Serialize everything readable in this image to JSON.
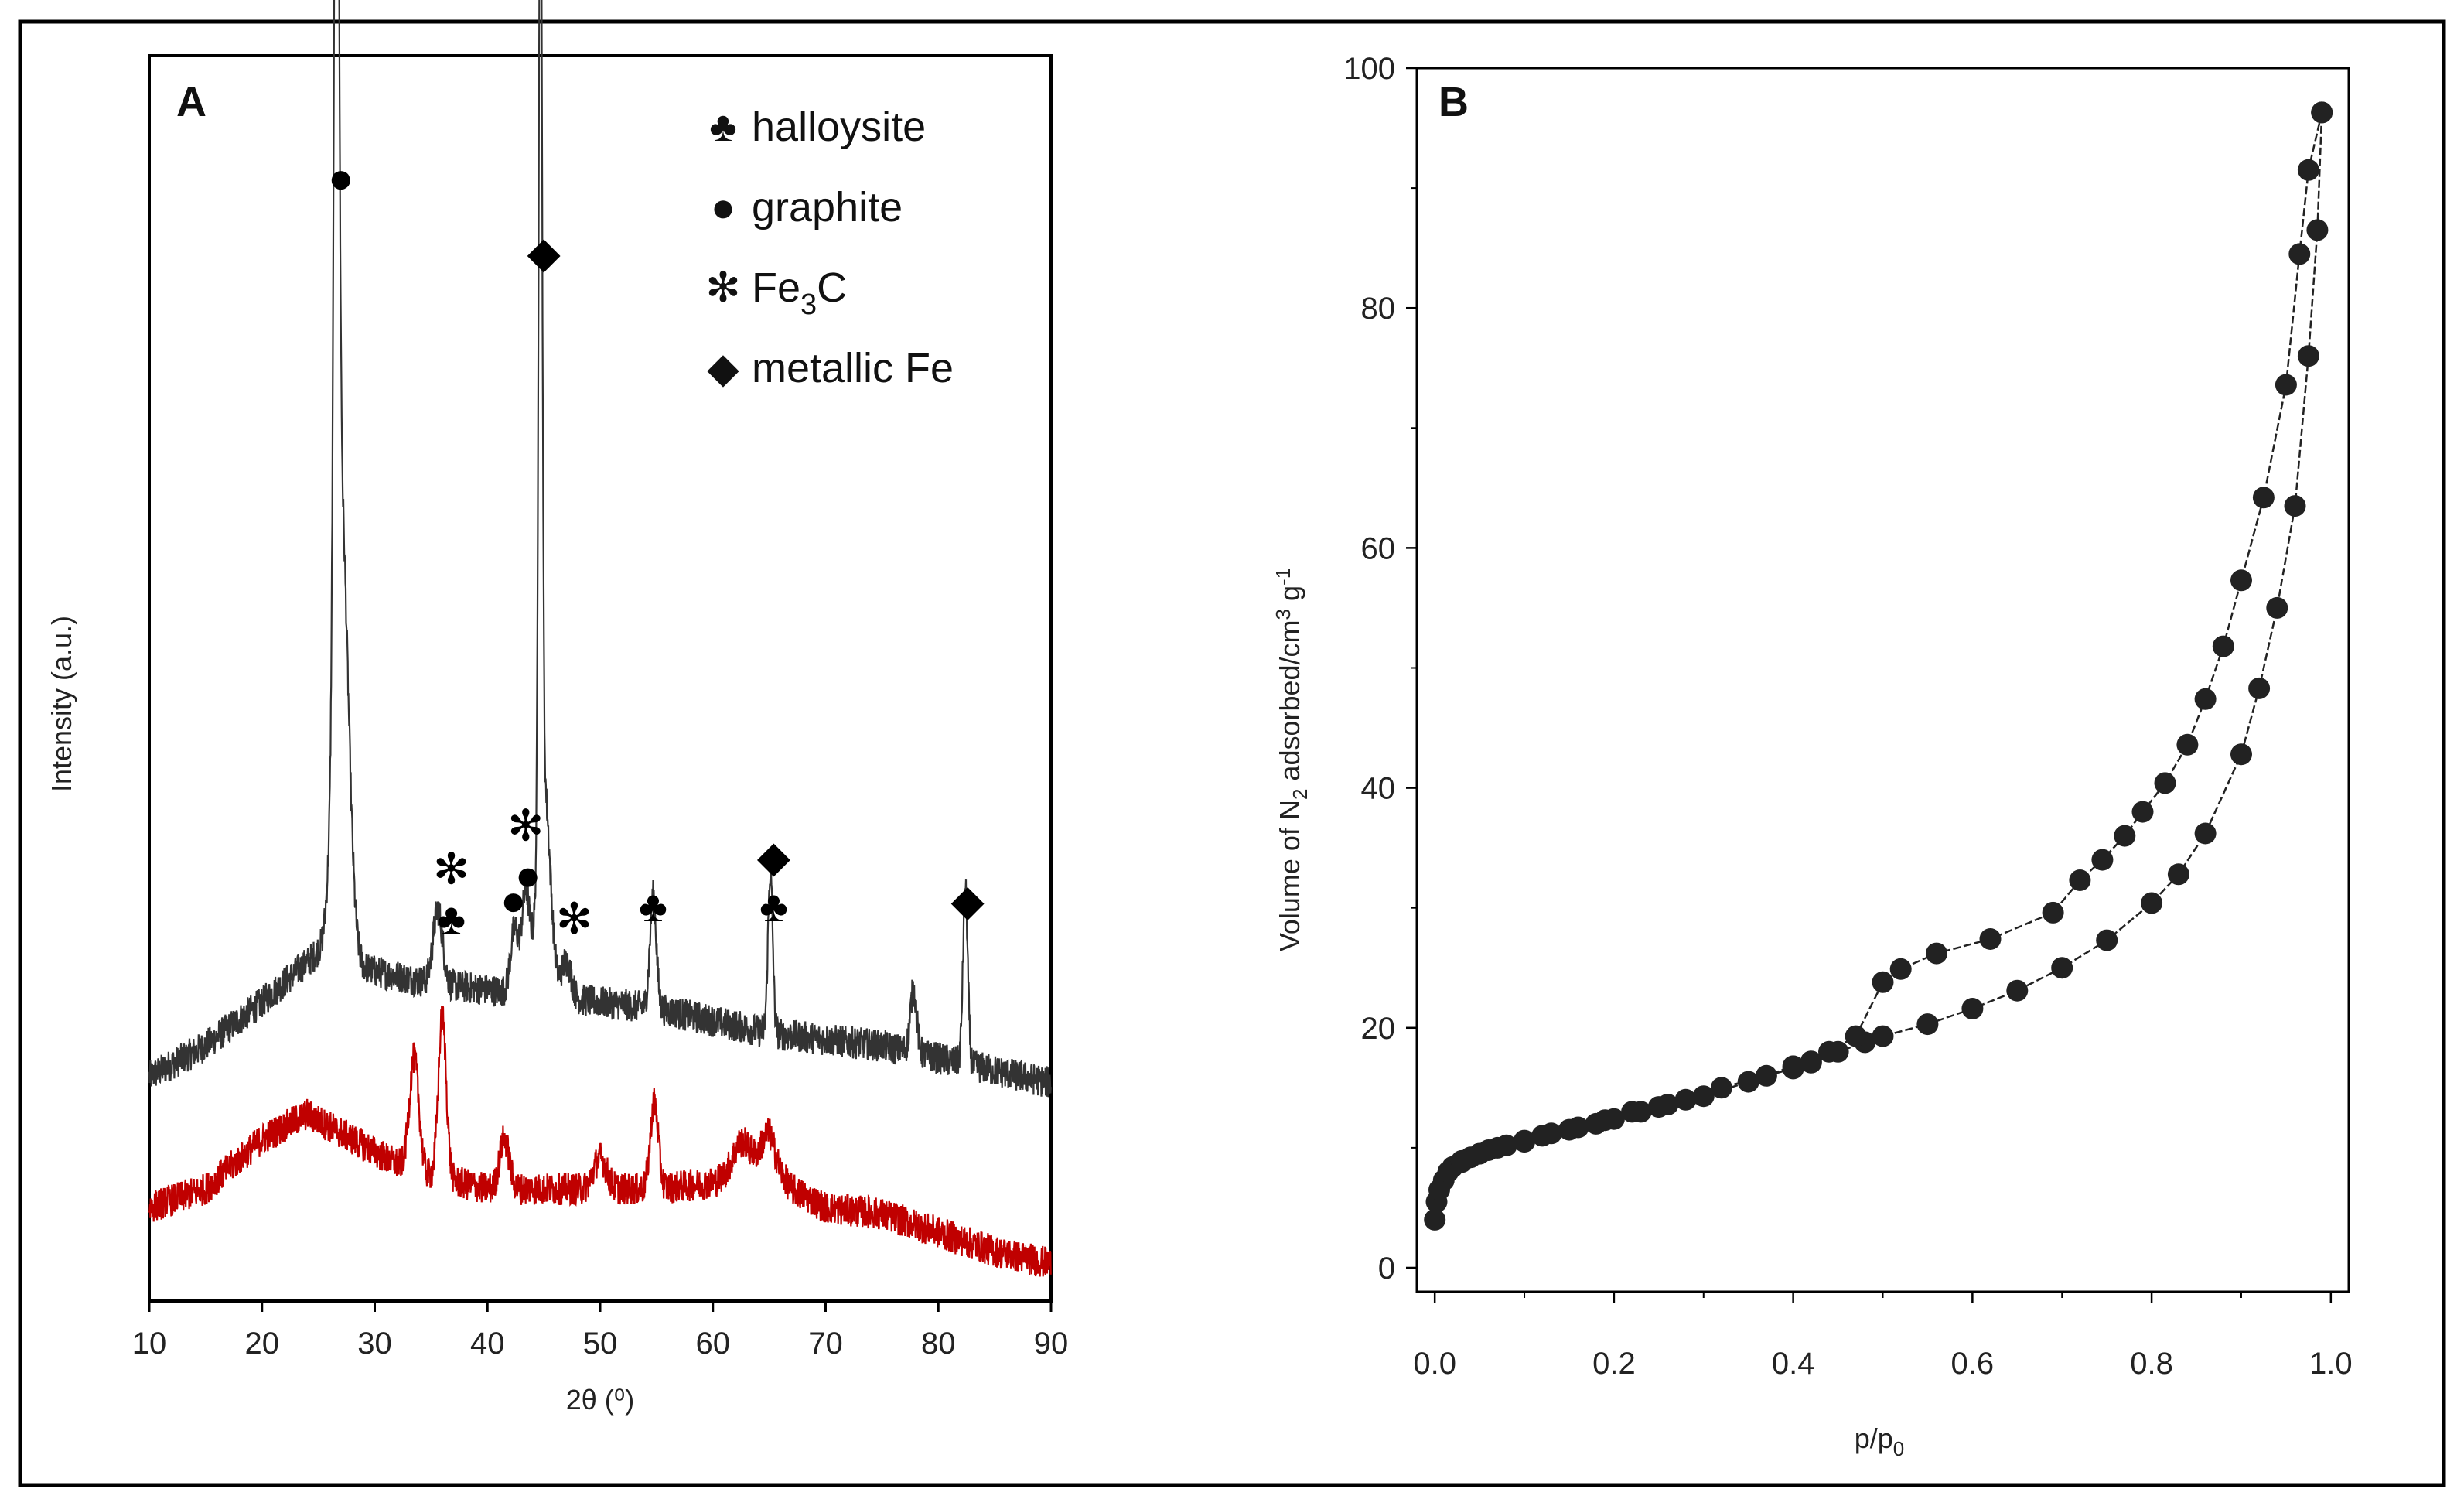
{
  "chart_data": [
    {
      "type": "line",
      "panel_label": "A",
      "title": "",
      "xlabel": "2θ (⁰)",
      "ylabel": "Intensity (a.u.)",
      "xlim": [
        10,
        90
      ],
      "xticks": [
        "10",
        "20",
        "30",
        "40",
        "50",
        "60",
        "70",
        "80",
        "90"
      ],
      "ylim": [
        0,
        100
      ],
      "y_ticks_shown": false,
      "legend": {
        "position": "top-right",
        "entries": [
          {
            "symbol": "♣",
            "label": "halloysite"
          },
          {
            "symbol": "●",
            "label": "graphite"
          },
          {
            "symbol": "✻",
            "label_main": "Fe",
            "label_sub": "3",
            "label_tail": "C"
          },
          {
            "symbol": "◆",
            "label": "metallic Fe"
          }
        ]
      },
      "series": [
        {
          "name": "upper (black) pattern",
          "color": "#333333",
          "baseline": [
            [
              10,
              18
            ],
            [
              15,
              20.5
            ],
            [
              20,
              24
            ],
            [
              25,
              28
            ],
            [
              28,
              27
            ],
            [
              30,
              26.5
            ],
            [
              35,
              25.5
            ],
            [
              40,
              25
            ],
            [
              45,
              24.5
            ],
            [
              50,
              24
            ],
            [
              55,
              23.5
            ],
            [
              60,
              22.5
            ],
            [
              65,
              21.5
            ],
            [
              70,
              21
            ],
            [
              75,
              20.5
            ],
            [
              80,
              19.5
            ],
            [
              85,
              18.5
            ],
            [
              90,
              17.5
            ]
          ],
          "peaks": [
            [
              26.6,
              83,
              0.3
            ],
            [
              27.0,
              37,
              0.9
            ],
            [
              35.6,
              6,
              0.6
            ],
            [
              42.4,
              5,
              0.5
            ],
            [
              43.4,
              8,
              0.5
            ],
            [
              44.7,
              82,
              0.22
            ],
            [
              45.0,
              17,
              0.8
            ],
            [
              47.0,
              3,
              0.6
            ],
            [
              54.7,
              9,
              0.4
            ],
            [
              65.1,
              13,
              0.3
            ],
            [
              77.8,
              5,
              0.4
            ],
            [
              82.4,
              14,
              0.3
            ]
          ],
          "noise": 1.3
        },
        {
          "name": "lower (red) pattern",
          "color": "#c00000",
          "baseline": [
            [
              10,
              7.5
            ],
            [
              15,
              9
            ],
            [
              20,
              13
            ],
            [
              24,
              15
            ],
            [
              28,
              13
            ],
            [
              32,
              11
            ],
            [
              35,
              10
            ],
            [
              40,
              9
            ],
            [
              45,
              9
            ],
            [
              50,
              9
            ],
            [
              55,
              9
            ],
            [
              60,
              9.5
            ],
            [
              63,
              11
            ],
            [
              65,
              11.5
            ],
            [
              67,
              9
            ],
            [
              70,
              7.5
            ],
            [
              75,
              7
            ],
            [
              80,
              5.5
            ],
            [
              85,
              4
            ],
            [
              90,
              3
            ]
          ],
          "peaks": [
            [
              33.5,
              9,
              0.6
            ],
            [
              36.0,
              13,
              0.5
            ],
            [
              41.5,
              4,
              0.6
            ],
            [
              50.0,
              2.5,
              0.8
            ],
            [
              54.8,
              7,
              0.5
            ],
            [
              62.5,
              2,
              1.0
            ],
            [
              64.9,
              2,
              0.8
            ]
          ],
          "noise": 1.3
        }
      ],
      "annotations": [
        {
          "symbol": "●",
          "x": 27,
          "y": 89
        },
        {
          "symbol": "◆",
          "x": 45,
          "y": 83
        },
        {
          "symbol": "✻",
          "x": 36.8,
          "y": 33.5
        },
        {
          "symbol": "♣",
          "x": 36.8,
          "y": 29.5
        },
        {
          "symbol": "●",
          "x": 42.3,
          "y": 31
        },
        {
          "symbol": "✻",
          "x": 43.4,
          "y": 37
        },
        {
          "symbol": "●",
          "x": 43.6,
          "y": 33
        },
        {
          "symbol": "✻",
          "x": 47.7,
          "y": 29.5
        },
        {
          "symbol": "♣",
          "x": 54.7,
          "y": 30.5
        },
        {
          "symbol": "◆",
          "x": 65.4,
          "y": 34.5
        },
        {
          "symbol": "♣",
          "x": 65.4,
          "y": 30.5
        },
        {
          "symbol": "◆",
          "x": 82.6,
          "y": 31
        }
      ]
    },
    {
      "type": "scatter",
      "panel_label": "B",
      "title": "",
      "xlabel_main": "p/p",
      "xlabel_sub": "0",
      "ylabel_parts": [
        "Volume of N",
        "2",
        " adsorbed/cm",
        "3",
        " g",
        "-1"
      ],
      "xlim": [
        -0.02,
        1.02
      ],
      "ylim": [
        -2,
        100
      ],
      "xticks": [
        "0.0",
        "0.2",
        "0.4",
        "0.6",
        "0.8",
        "1.0"
      ],
      "yticks": [
        "0",
        "20",
        "40",
        "60",
        "80",
        "100"
      ],
      "marker": "circle",
      "color": "#222222",
      "series": [
        {
          "name": "adsorption",
          "points": [
            [
              0.0,
              4
            ],
            [
              0.002,
              5.5
            ],
            [
              0.005,
              6.5
            ],
            [
              0.01,
              7.3
            ],
            [
              0.015,
              8
            ],
            [
              0.02,
              8.4
            ],
            [
              0.03,
              8.8
            ],
            [
              0.04,
              9.2
            ],
            [
              0.05,
              9.5
            ],
            [
              0.06,
              9.8
            ],
            [
              0.08,
              10.2
            ],
            [
              0.1,
              10.6
            ],
            [
              0.12,
              11
            ],
            [
              0.15,
              11.5
            ],
            [
              0.18,
              12
            ],
            [
              0.2,
              12.4
            ],
            [
              0.23,
              13
            ],
            [
              0.26,
              13.6
            ],
            [
              0.3,
              14.3
            ],
            [
              0.35,
              15.5
            ],
            [
              0.4,
              16.8
            ],
            [
              0.42,
              17.2
            ],
            [
              0.45,
              18
            ],
            [
              0.48,
              18.8
            ],
            [
              0.5,
              19.3
            ],
            [
              0.55,
              20.3
            ],
            [
              0.6,
              21.6
            ],
            [
              0.65,
              23.1
            ],
            [
              0.7,
              25
            ],
            [
              0.75,
              27.3
            ],
            [
              0.8,
              30.4
            ],
            [
              0.83,
              32.8
            ],
            [
              0.86,
              36.2
            ],
            [
              0.9,
              42.8
            ],
            [
              0.92,
              48.3
            ],
            [
              0.94,
              55
            ],
            [
              0.96,
              63.5
            ],
            [
              0.975,
              76
            ],
            [
              0.985,
              86.5
            ],
            [
              0.99,
              96.3
            ]
          ]
        },
        {
          "name": "desorption",
          "points": [
            [
              0.99,
              96.3
            ],
            [
              0.975,
              91.5
            ],
            [
              0.965,
              84.5
            ],
            [
              0.95,
              73.6
            ],
            [
              0.925,
              64.2
            ],
            [
              0.9,
              57.3
            ],
            [
              0.88,
              51.8
            ],
            [
              0.86,
              47.4
            ],
            [
              0.84,
              43.6
            ],
            [
              0.815,
              40.4
            ],
            [
              0.79,
              38
            ],
            [
              0.77,
              36
            ],
            [
              0.745,
              34
            ],
            [
              0.72,
              32.3
            ],
            [
              0.69,
              29.6
            ],
            [
              0.62,
              27.4
            ],
            [
              0.56,
              26.2
            ],
            [
              0.52,
              24.9
            ],
            [
              0.5,
              23.8
            ],
            [
              0.47,
              19.3
            ],
            [
              0.44,
              18
            ],
            [
              0.42,
              17.1
            ],
            [
              0.4,
              16.6
            ],
            [
              0.37,
              16
            ],
            [
              0.32,
              15
            ],
            [
              0.28,
              14
            ],
            [
              0.25,
              13.4
            ],
            [
              0.22,
              13
            ],
            [
              0.19,
              12.3
            ],
            [
              0.16,
              11.7
            ],
            [
              0.13,
              11.2
            ],
            [
              0.1,
              10.5
            ],
            [
              0.07,
              10
            ],
            [
              0.05,
              9.5
            ],
            [
              0.03,
              8.9
            ]
          ]
        }
      ]
    }
  ]
}
